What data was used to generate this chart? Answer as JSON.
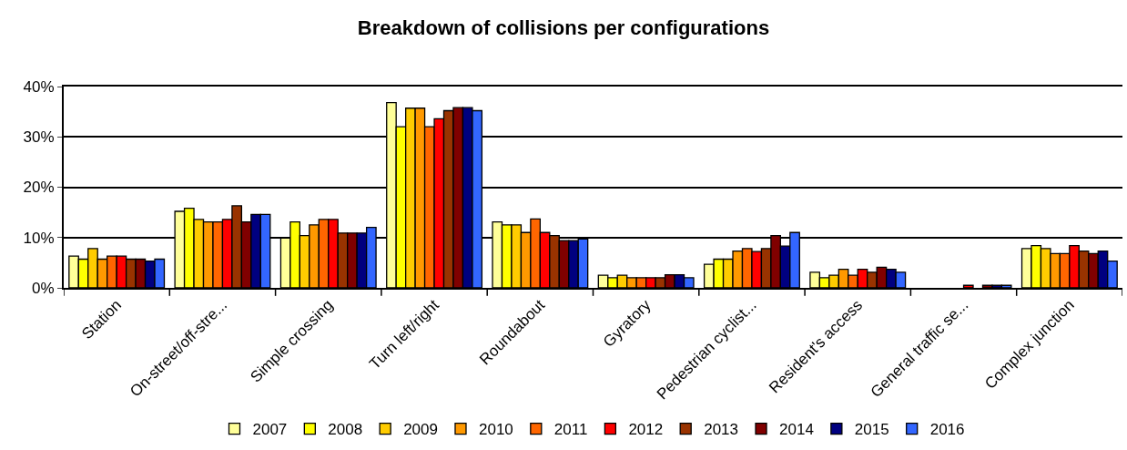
{
  "chart_data": {
    "type": "bar",
    "title": "Breakdown of collisions per configurations",
    "categories": [
      "Station",
      "On-street/off-stre...",
      "Simple crossing",
      "Turn left/right",
      "Roundabout",
      "Gyratory",
      "Pedestrian cyclist...",
      "Resident's access",
      "General traffic se...",
      "Complex junction"
    ],
    "series": [
      {
        "name": "2007",
        "color": "#ffff99",
        "values": [
          6.3,
          15.2,
          9.9,
          36.8,
          13.1,
          2.5,
          4.7,
          3.1,
          null,
          7.8
        ]
      },
      {
        "name": "2008",
        "color": "#ffff00",
        "values": [
          5.7,
          15.8,
          13.1,
          32.0,
          12.5,
          2.0,
          5.7,
          2.0,
          null,
          8.4
        ]
      },
      {
        "name": "2009",
        "color": "#ffcc00",
        "values": [
          7.8,
          13.6,
          10.4,
          35.7,
          12.5,
          2.5,
          5.7,
          2.5,
          null,
          7.8
        ]
      },
      {
        "name": "2010",
        "color": "#ff9900",
        "values": [
          5.7,
          13.1,
          12.5,
          35.7,
          11.0,
          2.0,
          7.3,
          3.7,
          null,
          6.8
        ]
      },
      {
        "name": "2011",
        "color": "#ff6600",
        "values": [
          6.3,
          13.1,
          13.6,
          32.0,
          13.7,
          2.0,
          7.8,
          2.5,
          null,
          6.8
        ]
      },
      {
        "name": "2012",
        "color": "#ff0000",
        "values": [
          6.3,
          13.6,
          13.6,
          33.6,
          11.0,
          2.0,
          7.2,
          3.7,
          0.5,
          8.4
        ]
      },
      {
        "name": "2013",
        "color": "#993300",
        "values": [
          5.7,
          16.3,
          10.9,
          35.2,
          10.4,
          2.0,
          7.8,
          3.1,
          null,
          7.3
        ]
      },
      {
        "name": "2014",
        "color": "#800000",
        "values": [
          5.7,
          13.1,
          10.9,
          35.8,
          9.4,
          2.6,
          10.4,
          4.1,
          0.5,
          6.8
        ]
      },
      {
        "name": "2015",
        "color": "#000080",
        "values": [
          5.3,
          14.6,
          10.9,
          35.8,
          9.4,
          2.6,
          8.3,
          3.7,
          0.5,
          7.3
        ]
      },
      {
        "name": "2016",
        "color": "#3366ff",
        "values": [
          5.7,
          14.6,
          12.0,
          35.2,
          9.7,
          2.0,
          11.0,
          3.1,
          0.5,
          5.3
        ]
      }
    ],
    "ylim": [
      0,
      40
    ],
    "yticks": [
      {
        "value": 0,
        "label": "0%"
      },
      {
        "value": 10,
        "label": "10%"
      },
      {
        "value": 20,
        "label": "20%"
      },
      {
        "value": 30,
        "label": "30%"
      },
      {
        "value": 40,
        "label": "40%"
      }
    ],
    "grid": "y",
    "legend": "bottom"
  }
}
